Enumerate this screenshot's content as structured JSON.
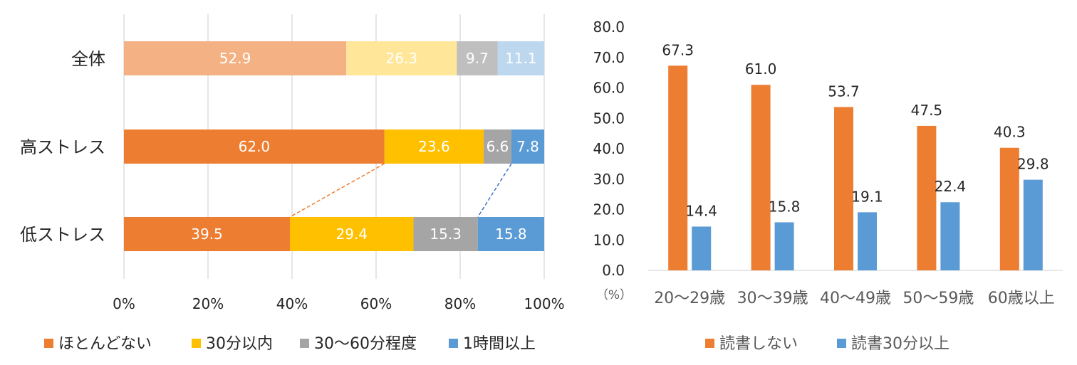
{
  "chart_data": [
    {
      "type": "bar",
      "orientation": "horizontal",
      "stacked": true,
      "categories": [
        "全体",
        "高ストレス",
        "低ストレス"
      ],
      "x_ticks": [
        "0%",
        "20%",
        "40%",
        "60%",
        "80%",
        "100%"
      ],
      "xlim": [
        0,
        100
      ],
      "grid": true,
      "legend_position": "bottom",
      "series": [
        {
          "name": "ほとんどない",
          "values": [
            52.9,
            62.0,
            39.5
          ],
          "color": "#ED7D31",
          "light_color": "#F4B183"
        },
        {
          "name": "30分以内",
          "values": [
            26.3,
            23.6,
            29.4
          ],
          "color": "#FFC000",
          "light_color": "#FFE699"
        },
        {
          "name": "30～60分程度",
          "values": [
            9.7,
            6.6,
            15.3
          ],
          "color": "#A5A5A5",
          "light_color": "#BFBFBF"
        },
        {
          "name": "1時間以上",
          "values": [
            11.1,
            7.8,
            15.8
          ],
          "color": "#5B9BD5",
          "light_color": "#BDD7EE"
        }
      ],
      "value_labels": [
        [
          "52.9",
          "26.3",
          "9.7",
          "11.1"
        ],
        [
          "62.0",
          "23.6",
          "6.6",
          "7.8"
        ],
        [
          "39.5",
          "29.4",
          "15.3",
          "15.8"
        ]
      ],
      "connector_colors": [
        "#ED7D31",
        "#4472C4"
      ]
    },
    {
      "type": "bar",
      "categories": [
        "20～29歳",
        "30～39歳",
        "40～49歳",
        "50～59歳",
        "60歳以上"
      ],
      "y_ticks": [
        "0.0",
        "10.0",
        "20.0",
        "30.0",
        "40.0",
        "50.0",
        "60.0",
        "70.0",
        "80.0"
      ],
      "ylim": [
        0,
        80
      ],
      "unit_label": "（%）",
      "grid": false,
      "legend_position": "bottom",
      "series": [
        {
          "name": "読書しない",
          "values": [
            67.3,
            61.0,
            53.7,
            47.5,
            40.3
          ],
          "labels": [
            "67.3",
            "61.0",
            "53.7",
            "47.5",
            "40.3"
          ],
          "color": "#ED7D31"
        },
        {
          "name": "読書30分以上",
          "values": [
            14.4,
            15.8,
            19.1,
            22.4,
            29.8
          ],
          "labels": [
            "14.4",
            "15.8",
            "19.1",
            "22.4",
            "29.8"
          ],
          "color": "#5B9BD5"
        }
      ]
    }
  ]
}
